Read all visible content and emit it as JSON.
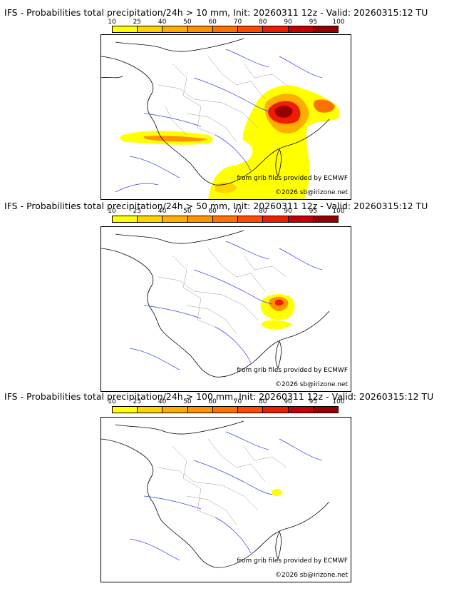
{
  "colorbar": {
    "ticks": [
      "10",
      "25",
      "40",
      "50",
      "60",
      "70",
      "80",
      "90",
      "95",
      "100"
    ],
    "colors": [
      "#ffff00",
      "#ffd200",
      "#ffae00",
      "#ff9200",
      "#ff7200",
      "#ff4a00",
      "#ee1c00",
      "#c40000",
      "#960000",
      "#5a0000"
    ]
  },
  "panels": [
    {
      "title": "IFS - Probabilities total precipitation/24h > 10 mm, Init: 20260311 12z - Valid: 20260315:12 TU",
      "credit_source": "from grib files provided by ECMWF",
      "credit_copyright": "©2026 sb@irizone.net"
    },
    {
      "title": "IFS - Probabilities total precipitation/24h > 50 mm, Init: 20260311 12z - Valid: 20260315:12 TU",
      "credit_source": "from grib files provided by ECMWF",
      "credit_copyright": "©2026 sb@irizone.net"
    },
    {
      "title": "IFS - Probabilities total precipitation/24h > 100 mm, Init: 20260311 12z - Valid: 20260315:12 TU",
      "credit_source": "from grib files provided by ECMWF",
      "credit_copyright": "©2026 sb@irizone.net"
    }
  ]
}
